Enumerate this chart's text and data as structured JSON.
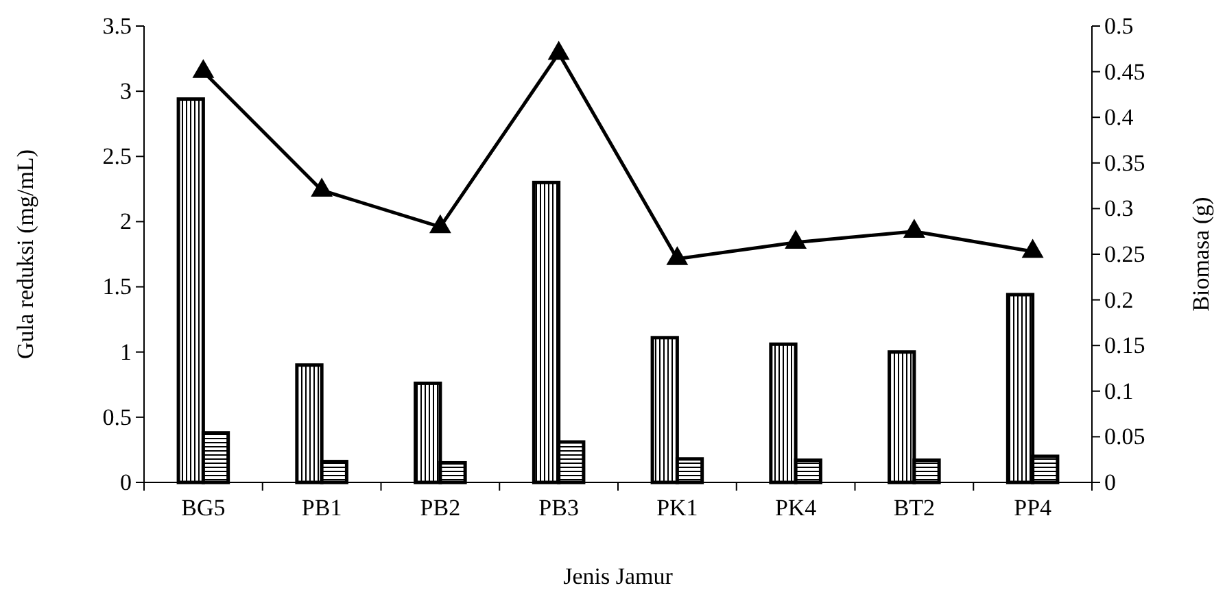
{
  "chart_data": {
    "type": "bar",
    "xlabel": "Jenis Jamur",
    "ylabel": "Gula reduksi (mg/mL)",
    "y2label": "Biomasa (g)",
    "categories": [
      "BG5",
      "PB1",
      "PB2",
      "PB3",
      "PK1",
      "PK4",
      "BT2",
      "PP4"
    ],
    "series": [
      {
        "color": "#000000",
        "values": [
          2.94,
          0.9,
          0.76,
          2.3,
          1.11,
          1.06,
          1.0,
          1.44
        ]
      },
      {
        "color": "#000000",
        "values": [
          0.38,
          0.16,
          0.15,
          0.31,
          0.18,
          0.17,
          0.17,
          0.2
        ]
      },
      {
        "type": "line",
        "axis": "y2",
        "color": "#000000",
        "values": [
          0.45,
          0.32,
          0.28,
          0.47,
          0.245,
          0.263,
          0.275,
          0.253
        ]
      }
    ],
    "ylim": [
      0,
      3.5
    ],
    "yticks": [
      {
        "value": 0,
        "label": "0"
      },
      {
        "value": 0.5,
        "label": "0.5"
      },
      {
        "value": 1,
        "label": "1"
      },
      {
        "value": 1.5,
        "label": "1.5"
      },
      {
        "value": 2,
        "label": "2"
      },
      {
        "value": 2.5,
        "label": "2.5"
      },
      {
        "value": 3,
        "label": "3"
      },
      {
        "value": 3.5,
        "label": "3.5"
      }
    ],
    "y2lim": [
      0,
      0.5
    ],
    "y2ticks": [
      {
        "value": 0,
        "label": "0"
      },
      {
        "value": 0.05,
        "label": "0.05"
      },
      {
        "value": 0.1,
        "label": "0.1"
      },
      {
        "value": 0.15,
        "label": "0.15"
      },
      {
        "value": 0.2,
        "label": "0.2"
      },
      {
        "value": 0.25,
        "label": "0.25"
      },
      {
        "value": 0.3,
        "label": "0.3"
      },
      {
        "value": 0.35,
        "label": "0.35"
      },
      {
        "value": 0.4,
        "label": "0.4"
      },
      {
        "value": 0.45,
        "label": "0.45"
      },
      {
        "value": 0.5,
        "label": "0.5"
      }
    ],
    "marker": "triangle",
    "line_style": "solid",
    "grid": false
  }
}
